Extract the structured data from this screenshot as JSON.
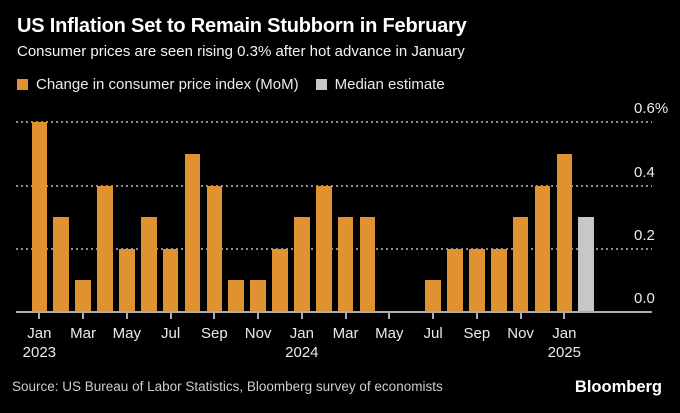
{
  "chart_data": {
    "type": "bar",
    "title": "US Inflation Set to Remain Stubborn in February",
    "subtitle": "Consumer prices are seen rising 0.3% after hot advance in January",
    "unit": "% MoM",
    "categories": [
      "Jan 2023",
      "Feb 2023",
      "Mar 2023",
      "Apr 2023",
      "May 2023",
      "Jun 2023",
      "Jul 2023",
      "Aug 2023",
      "Sep 2023",
      "Oct 2023",
      "Nov 2023",
      "Dec 2023",
      "Jan 2024",
      "Feb 2024",
      "Mar 2024",
      "Apr 2024",
      "May 2024",
      "Jun 2024",
      "Jul 2024",
      "Aug 2024",
      "Sep 2024",
      "Oct 2024",
      "Nov 2024",
      "Dec 2024",
      "Jan 2025",
      "Feb 2025"
    ],
    "series": [
      {
        "name": "Change in consumer price index (MoM)",
        "color": "#DF922F",
        "values": [
          0.6,
          0.3,
          0.1,
          0.4,
          0.2,
          0.3,
          0.2,
          0.5,
          0.4,
          0.1,
          0.1,
          0.2,
          0.3,
          0.4,
          0.3,
          0.3,
          0.0,
          0.0,
          0.1,
          0.2,
          0.2,
          0.2,
          0.3,
          0.4,
          0.5,
          null
        ]
      },
      {
        "name": "Median estimate",
        "color": "#C7C7C7",
        "values": [
          null,
          null,
          null,
          null,
          null,
          null,
          null,
          null,
          null,
          null,
          null,
          null,
          null,
          null,
          null,
          null,
          null,
          null,
          null,
          null,
          null,
          null,
          null,
          null,
          null,
          0.3
        ]
      }
    ],
    "yticks": [
      {
        "label": "0.6%",
        "value": 0.6
      },
      {
        "label": "0.4",
        "value": 0.4
      },
      {
        "label": "0.2",
        "value": 0.2
      },
      {
        "label": "0.0",
        "value": 0.0
      }
    ],
    "ylim": [
      0,
      0.6
    ],
    "grid": "dotted-horizontal",
    "legend_position": "top-left",
    "xtick_interval": "every 2 months"
  },
  "footer": {
    "source": "Source: US Bureau of Labor Statistics, Bloomberg survey of economists",
    "logo": "Bloomberg"
  },
  "colors": {
    "background": "#000000",
    "bar_orange": "#DF922F",
    "median_gray": "#C7C7C7",
    "gridline": "#8F8F8F",
    "axis": "#ABABAB",
    "text": "#FFFFFF"
  }
}
